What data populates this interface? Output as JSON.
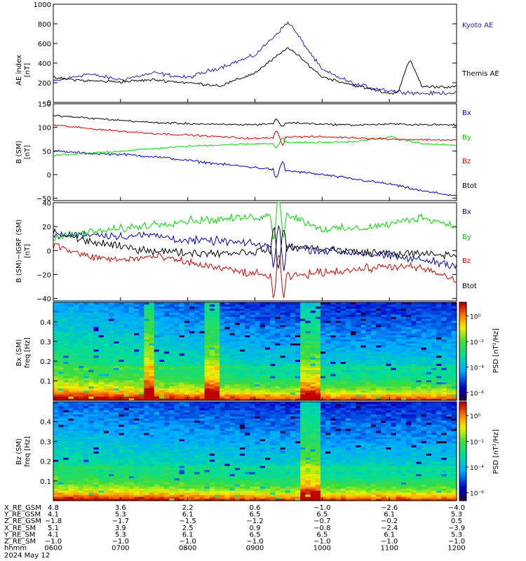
{
  "chart_data": [
    {
      "type": "line",
      "ylabel": "AE index",
      "yunit": "[nT]",
      "ylim": [
        0,
        1000
      ],
      "yticks": [
        "0",
        "200",
        "400",
        "600",
        "800",
        "1000"
      ],
      "x": [
        "0600",
        "0630",
        "0700",
        "0730",
        "0800",
        "0830",
        "0900",
        "0930",
        "1000",
        "1030",
        "1100",
        "1130",
        "1200"
      ],
      "series": [
        {
          "name": "Kyoto AE",
          "color": "#2020c8",
          "values": [
            210,
            290,
            230,
            300,
            250,
            360,
            480,
            820,
            330,
            180,
            120,
            90,
            100
          ]
        },
        {
          "name": "Themis AE",
          "color": "#000000",
          "values": [
            250,
            220,
            210,
            230,
            200,
            170,
            300,
            560,
            260,
            170,
            90,
            160,
            160
          ]
        }
      ],
      "extra": {
        "peak_1130": 440
      }
    },
    {
      "type": "line",
      "ylabel": "B (SM)",
      "yunit": "[nT]",
      "ylim": [
        -55,
        150
      ],
      "yticks": [
        "−50",
        "0",
        "50",
        "100",
        "150"
      ],
      "x": [
        "0600",
        "0630",
        "0700",
        "0730",
        "0800",
        "0830",
        "0900",
        "0930",
        "1000",
        "1030",
        "1100",
        "1130",
        "1200"
      ],
      "series": [
        {
          "name": "Bx",
          "color": "#0000c0",
          "values": [
            50,
            45,
            43,
            38,
            30,
            22,
            15,
            8,
            0,
            -10,
            -20,
            -35,
            -45
          ]
        },
        {
          "name": "By",
          "color": "#00dd00",
          "values": [
            40,
            45,
            50,
            55,
            60,
            63,
            65,
            68,
            68,
            70,
            80,
            65,
            62
          ]
        },
        {
          "name": "Bz",
          "color": "#dd0000",
          "values": [
            105,
            98,
            92,
            87,
            84,
            80,
            76,
            80,
            80,
            78,
            75,
            74,
            73
          ]
        },
        {
          "name": "Btot",
          "color": "#000000",
          "values": [
            125,
            120,
            115,
            110,
            108,
            106,
            106,
            110,
            107,
            105,
            107,
            106,
            105
          ]
        }
      ]
    },
    {
      "type": "line",
      "ylabel": "B (SM)−IGRF (SM)",
      "yunit": "[nT]",
      "ylim": [
        -42,
        40
      ],
      "yticks": [
        "−40",
        "−20",
        "0",
        "20",
        "40"
      ],
      "x": [
        "0600",
        "0630",
        "0700",
        "0730",
        "0800",
        "0830",
        "0900",
        "0930",
        "1000",
        "1030",
        "1100",
        "1130",
        "1200"
      ],
      "series": [
        {
          "name": "Bx",
          "color": "#0000c0",
          "values": [
            12,
            14,
            12,
            13,
            8,
            8,
            5,
            3,
            0,
            -2,
            -5,
            -8,
            -12
          ]
        },
        {
          "name": "By",
          "color": "#00dd00",
          "values": [
            10,
            15,
            18,
            22,
            25,
            26,
            28,
            30,
            18,
            18,
            22,
            28,
            20
          ]
        },
        {
          "name": "Bz",
          "color": "#dd0000",
          "values": [
            5,
            -5,
            -8,
            -5,
            -10,
            -15,
            -20,
            -22,
            -18,
            -16,
            -13,
            -15,
            -25
          ]
        },
        {
          "name": "Btot",
          "color": "#000000",
          "values": [
            15,
            8,
            3,
            0,
            -2,
            -2,
            -1,
            3,
            2,
            -1,
            -2,
            -3,
            -4
          ]
        }
      ]
    },
    {
      "type": "heatmap",
      "ylabel": "Bx (SM)",
      "ylabel2": "freq",
      "yunit": "[Hz]",
      "ylim": [
        0,
        0.5
      ],
      "yticks": [
        "0.1",
        "0.2",
        "0.3",
        "0.4"
      ],
      "colorbar": {
        "label": "PSD [nT²/Hz]",
        "ticks": [
          "10⁰",
          "10⁻²",
          "10⁻⁴",
          "10⁻⁶"
        ]
      },
      "burst_columns": [
        18,
        19,
        30,
        31,
        32,
        49,
        50,
        51,
        52
      ]
    },
    {
      "type": "heatmap",
      "ylabel": "Bz (SM)",
      "ylabel2": "freq",
      "yunit": "[Hz]",
      "ylim": [
        0,
        0.5
      ],
      "yticks": [
        "0.1",
        "0.2",
        "0.3",
        "0.4"
      ],
      "colorbar": {
        "label": "PSD [nT²/Hz]",
        "ticks": [
          "10⁰",
          "10⁻²",
          "10⁻⁴",
          "10⁻⁶"
        ]
      },
      "burst_columns": [
        49,
        50,
        51,
        52
      ]
    }
  ],
  "ephemeris": {
    "rows": [
      {
        "label": "X_RE_GSM",
        "values": [
          "4.8",
          "3.6",
          "2.2",
          "0.6",
          "−1.0",
          "−2.6",
          "−4.0"
        ]
      },
      {
        "label": "Y_RE_GSM",
        "values": [
          "4.1",
          "5.3",
          "6.1",
          "6.5",
          "6.5",
          "6.1",
          "5.3"
        ]
      },
      {
        "label": "Z_RE_GSM",
        "values": [
          "−1.8",
          "−1.7",
          "−1.5",
          "−1.2",
          "−0.7",
          "−0.2",
          "0.5"
        ]
      },
      {
        "label": "X_RE_SM",
        "values": [
          "5.1",
          "3.9",
          "2.5",
          "0.9",
          "−0.8",
          "−2.4",
          "−3.9"
        ]
      },
      {
        "label": "Y_RE_SM",
        "values": [
          "4.1",
          "5.3",
          "6.1",
          "6.5",
          "6.5",
          "6.1",
          "5.3"
        ]
      },
      {
        "label": "Z_RE_SM",
        "values": [
          "−1.0",
          "−1.0",
          "−1.0",
          "−1.0",
          "−1.0",
          "−1.0",
          "−1.0"
        ]
      },
      {
        "label": "hhmm",
        "values": [
          "0600",
          "0700",
          "0800",
          "0900",
          "1000",
          "1100",
          "1200"
        ]
      }
    ],
    "date": "2024 May 12"
  }
}
